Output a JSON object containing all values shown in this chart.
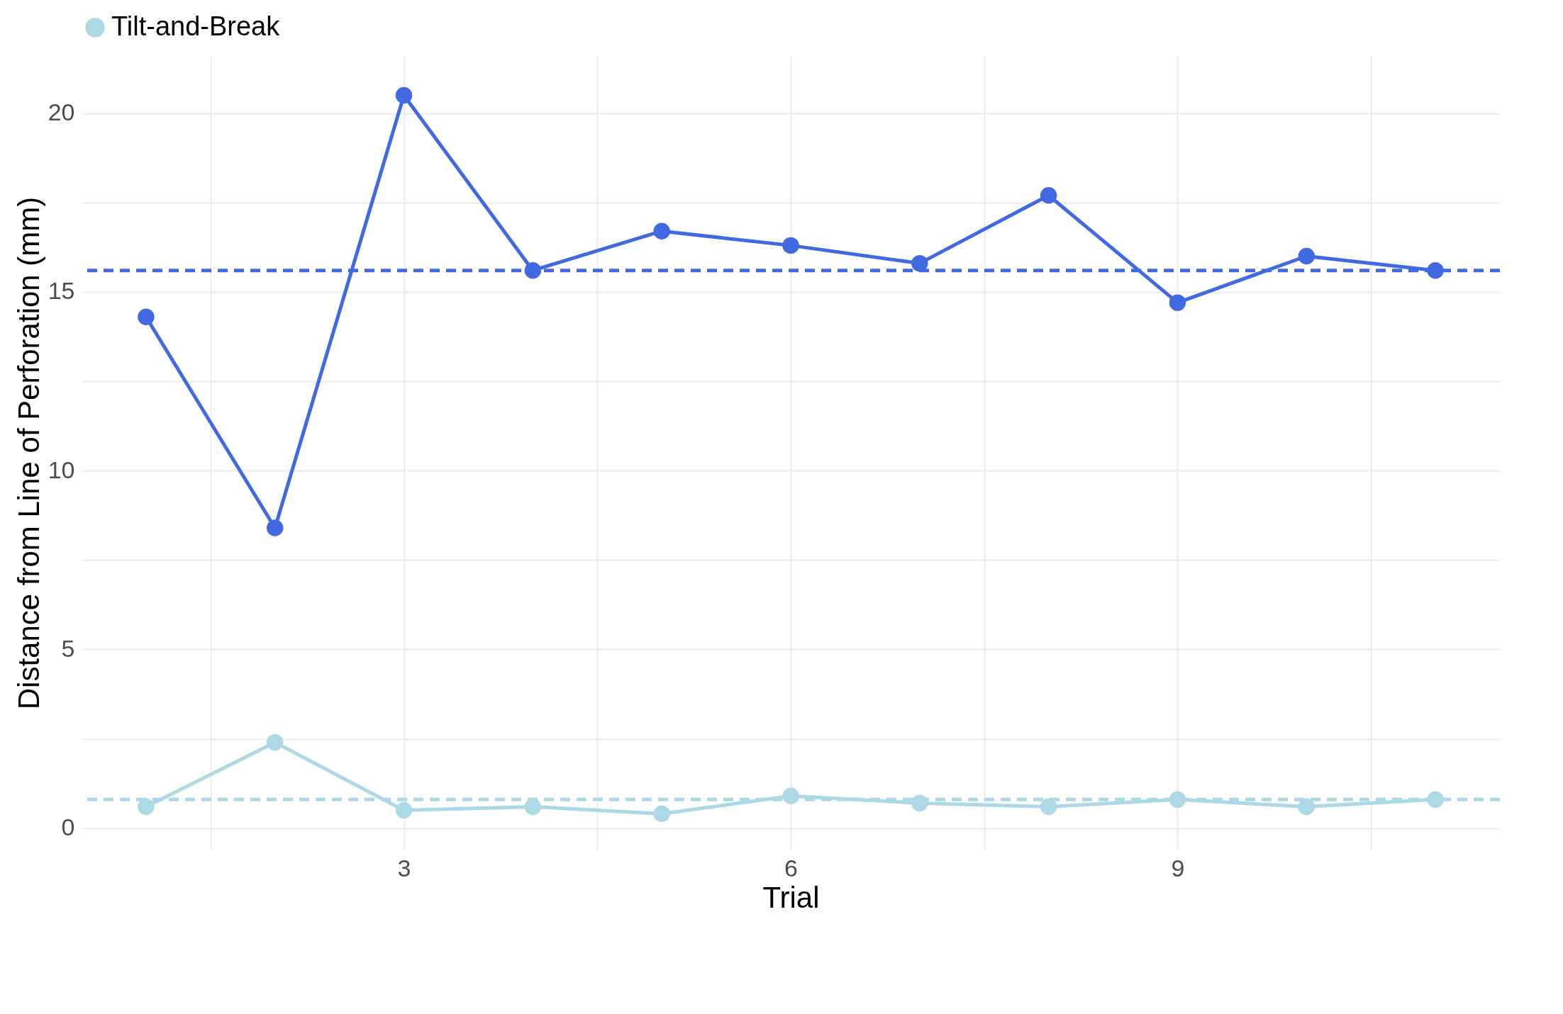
{
  "chart_data": {
    "type": "line",
    "xlabel": "Trial",
    "ylabel": "Distance from Line of Perforation (mm)",
    "x": [
      1,
      2,
      3,
      4,
      5,
      6,
      7,
      8,
      9,
      10,
      11
    ],
    "series": [
      {
        "color": "#4169e1",
        "values": [
          14.3,
          8.4,
          20.5,
          15.6,
          16.7,
          16.3,
          15.8,
          17.7,
          14.7,
          16.0,
          15.6
        ]
      },
      {
        "name": "Tilt-and-Break",
        "color": "#add8e6",
        "values": [
          0.6,
          2.4,
          0.5,
          0.6,
          0.4,
          0.9,
          0.7,
          0.6,
          0.8,
          0.6,
          0.8
        ]
      }
    ],
    "ref_lines": [
      {
        "axis": "y",
        "value": 15.6,
        "color": "#4169e1",
        "line_style": "dashed"
      },
      {
        "axis": "y",
        "value": 0.8,
        "color": "#add8e6",
        "line_style": "dashed"
      }
    ],
    "xlim": [
      0.5,
      11.5
    ],
    "xticks": [
      {
        "value": 1.5,
        "label": null
      },
      3,
      {
        "value": 4.5,
        "label": null
      },
      6,
      {
        "value": 7.5,
        "label": null
      },
      9,
      {
        "value": 10.5,
        "label": null
      }
    ],
    "ylim": [
      -0.6,
      21.6
    ],
    "yticks": [
      0,
      {
        "value": 2.5,
        "label": null
      },
      5,
      {
        "value": 7.5,
        "label": null
      },
      10,
      {
        "value": 12.5,
        "label": null
      },
      15,
      {
        "value": 17.5,
        "label": null
      },
      20
    ],
    "grid": true,
    "legend": "top",
    "marker": "circle",
    "line_style": "solid"
  }
}
